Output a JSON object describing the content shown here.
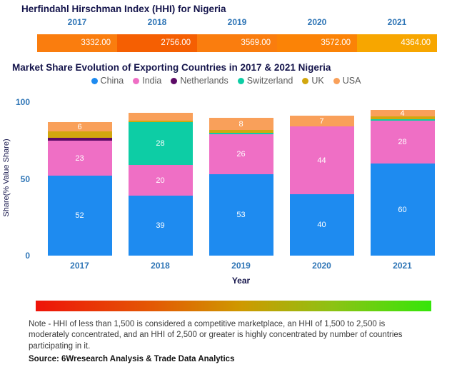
{
  "hhi": {
    "title": "Herfindahl Hirschman Index (HHI) for Nigeria",
    "years": [
      "2017",
      "2018",
      "2019",
      "2020",
      "2021"
    ],
    "values": [
      "3332.00",
      "2756.00",
      "3569.00",
      "3572.00",
      "4364.00"
    ],
    "segment_colors": [
      "#FA7D0E",
      "#F55F02",
      "#FA7D0E",
      "#FB8306",
      "#F7A600"
    ]
  },
  "share_chart": {
    "title": "Market Share Evolution of Exporting Countries in 2017 & 2021 Nigeria"
  },
  "chart_data": {
    "type": "bar",
    "stacked": true,
    "title": "Market Share Evolution of Exporting Countries in 2017 & 2021 Nigeria",
    "xlabel": "Year",
    "ylabel": "Share(% Value Share)",
    "ylim": [
      0,
      100
    ],
    "yticks": [
      0,
      50,
      100
    ],
    "legend_position": "top",
    "grid": false,
    "categories": [
      "2017",
      "2018",
      "2019",
      "2020",
      "2021"
    ],
    "series": [
      {
        "name": "China",
        "color": "#1E8BF0",
        "values": [
          52,
          39,
          53,
          40,
          60
        ],
        "labels": [
          "52",
          "39",
          "53",
          "40",
          "60"
        ]
      },
      {
        "name": "India",
        "color": "#EF6FC5",
        "values": [
          23,
          20,
          26,
          44,
          28
        ],
        "labels": [
          "23",
          "20",
          "26",
          "44",
          "28"
        ]
      },
      {
        "name": "Netherlands",
        "color": "#5C0A66",
        "values": [
          2,
          0,
          0,
          0,
          0
        ],
        "labels": [
          "",
          "",
          "",
          "",
          ""
        ]
      },
      {
        "name": "Switzerland",
        "color": "#0DCDA5",
        "values": [
          0,
          28,
          1,
          0,
          1
        ],
        "labels": [
          "",
          "28",
          "",
          "",
          ""
        ]
      },
      {
        "name": "UK",
        "color": "#D2A70E",
        "values": [
          4,
          1,
          2,
          0,
          2
        ],
        "labels": [
          "",
          "",
          "",
          "",
          ""
        ]
      },
      {
        "name": "USA",
        "color": "#F9A05A",
        "values": [
          6,
          5,
          8,
          7,
          4
        ],
        "labels": [
          "6",
          "",
          "8",
          "7",
          "4"
        ]
      }
    ]
  },
  "footer": {
    "note": "Note - HHI of less than 1,500 is considered a competitive marketplace, an HHI of 1,500 to 2,500 is moderately concentrated, and an HHI of 2,500 or greater is highly concentrated by number of countries participating in it.",
    "source": "Source: 6Wresearch Analysis & Trade Data Analytics",
    "gradient_colors": [
      "#EE1309",
      "#E35A04",
      "#CE9900",
      "#8DC214",
      "#35E60A"
    ]
  }
}
